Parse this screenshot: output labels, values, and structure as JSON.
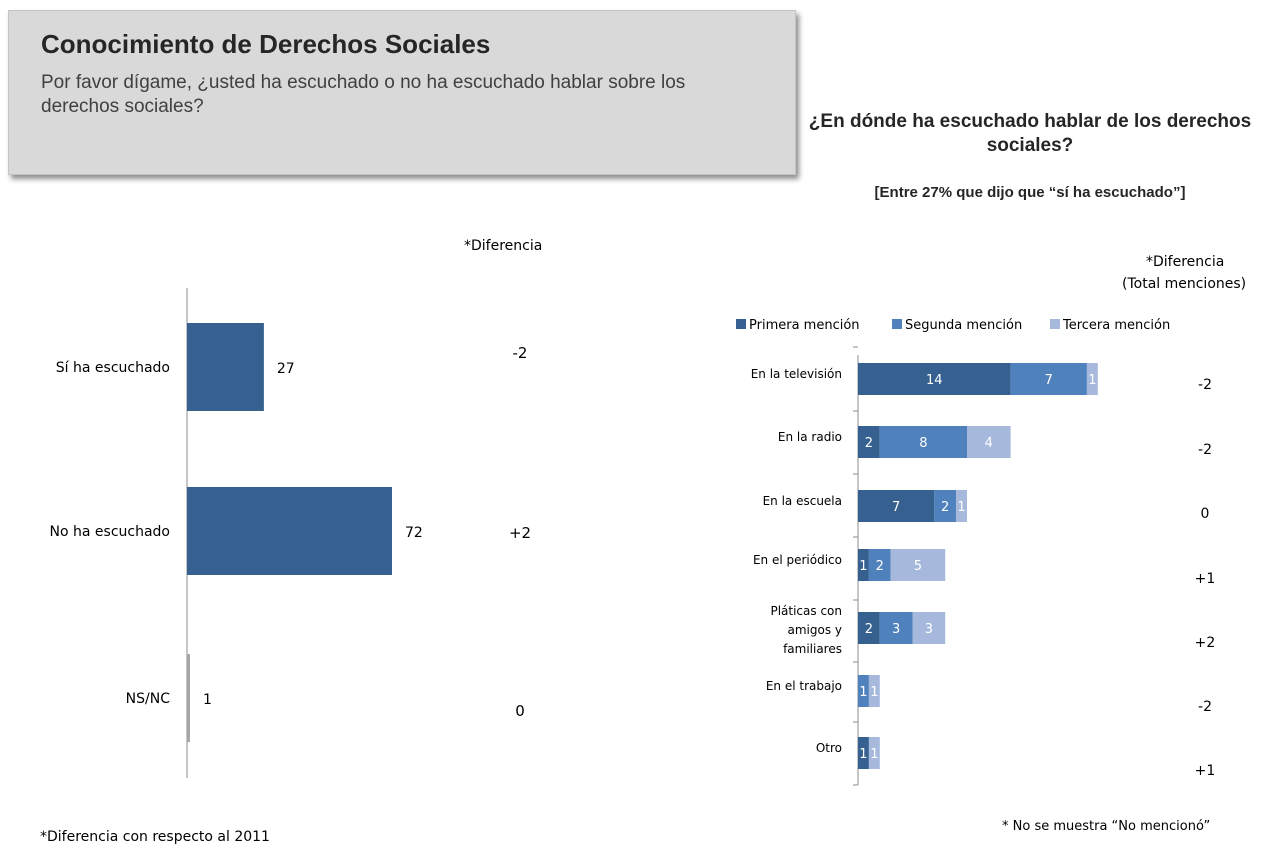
{
  "header": {
    "title": "Conocimiento de Derechos Sociales",
    "question": "Por favor dígame, ¿usted ha escuchado o no ha escuchado hablar sobre los derechos sociales?"
  },
  "left_chart": {
    "diff_header": "*Diferencia",
    "footnote": "*Diferencia con respecto al 2011"
  },
  "right_chart": {
    "title": "¿En dónde ha escuchado hablar de los derechos sociales?",
    "subtitle": "[Entre 27% que dijo que “sí ha escuchado”]",
    "diff_header_1": "*Diferencia",
    "diff_header_2": "(Total menciones)",
    "footnote": "* No se muestra  “No mencionó”"
  },
  "colors": {
    "primary_bar": "#35608f",
    "nsnc_bar": "#a6a6a6",
    "primera": "#35608f",
    "segunda": "#4f81bd",
    "tercera": "#a6b9dc"
  },
  "chart_data": [
    {
      "type": "bar",
      "orientation": "horizontal",
      "categories": [
        "Sí ha escuchado",
        "No ha escuchado",
        "NS/NC"
      ],
      "values": [
        27,
        72,
        1
      ],
      "differences": [
        "-2",
        "+2",
        "0"
      ],
      "title": "",
      "xlabel": "",
      "ylabel": "",
      "xlim": [
        0,
        100
      ]
    },
    {
      "type": "bar",
      "orientation": "horizontal",
      "stacked": true,
      "categories": [
        "En la televisión",
        "En la radio",
        "En la escuela",
        "En el periódico",
        "Pláticas con amigos y familiares",
        "En el trabajo",
        "Otro"
      ],
      "series": [
        {
          "name": "Primera mención",
          "values": [
            14,
            2,
            7,
            1,
            2,
            null,
            1
          ]
        },
        {
          "name": "Segunda mención",
          "values": [
            7,
            8,
            2,
            2,
            3,
            1,
            null
          ]
        },
        {
          "name": "Tercera mención",
          "values": [
            1,
            4,
            1,
            5,
            3,
            1,
            1
          ]
        }
      ],
      "differences": [
        "-2",
        "-2",
        "0",
        "+1",
        "+2",
        "-2",
        "+1"
      ],
      "legend": "top"
    }
  ]
}
